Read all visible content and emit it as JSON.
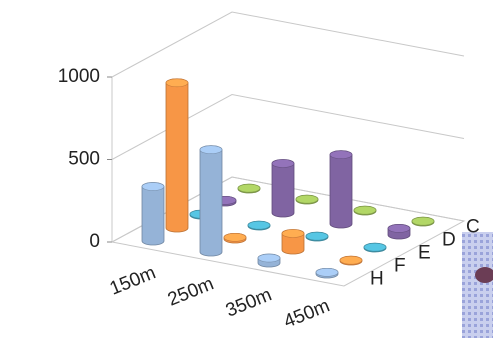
{
  "chart_data": {
    "type": "cylinder3d",
    "categories": [
      "150m",
      "250m",
      "350m",
      "450m"
    ],
    "series": [
      {
        "name": "C",
        "color": "#9bbb59",
        "values": [
          5,
          5,
          5,
          5
        ]
      },
      {
        "name": "D",
        "color": "#8064a2",
        "values": [
          10,
          300,
          420,
          40
        ]
      },
      {
        "name": "E",
        "color": "#4bacc6",
        "values": [
          5,
          5,
          5,
          5
        ]
      },
      {
        "name": "F",
        "color": "#f79646",
        "values": [
          880,
          10,
          100,
          5
        ]
      },
      {
        "name": "H",
        "color": "#95b3d7",
        "values": [
          330,
          620,
          30,
          10
        ]
      }
    ],
    "ylim": [
      0,
      1000
    ],
    "yticks": [
      0,
      500,
      1000
    ],
    "grid": true
  }
}
